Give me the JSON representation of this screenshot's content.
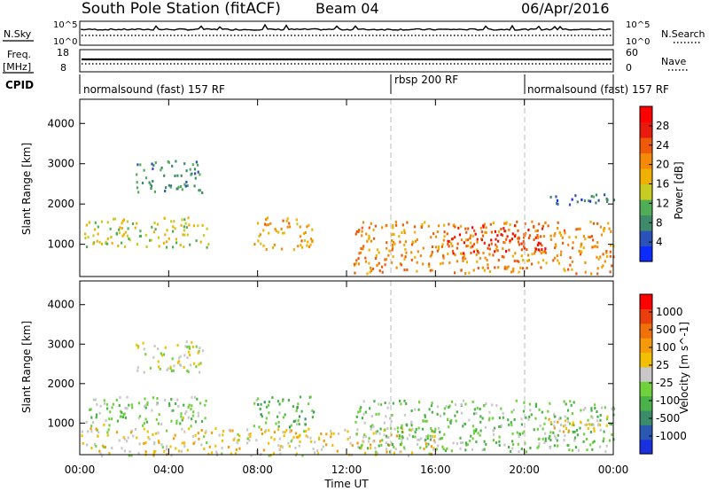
{
  "header": {
    "station": "South Pole Station (fitACF)",
    "beam": "Beam 04",
    "date": "06/Apr/2016"
  },
  "status_panels": {
    "nsky_label": "N.Sky",
    "nsky_ticks": [
      "10^5",
      "10^0"
    ],
    "nsearch_label": "N.Search",
    "nsearch_ticks": [
      "10^5",
      "10^0"
    ],
    "freq_label": "Freq.",
    "freq_unit": "[MHz]",
    "freq_ticks": [
      "18",
      "8"
    ],
    "nave_label": "Nave",
    "nave_ticks": [
      "60",
      "0"
    ],
    "cpid_label": "CPID",
    "cpid_segments": [
      {
        "label": "normalsound (fast) 157 RF",
        "start_h": 0,
        "end_h": 14
      },
      {
        "label": "rbsp 200 RF",
        "start_h": 14,
        "end_h": 20
      },
      {
        "label": "normalsound (fast) 157 RF",
        "start_h": 20,
        "end_h": 24
      }
    ]
  },
  "axes": {
    "ylabel": "Slant Range [km]",
    "xlabel": "Time UT",
    "y_ticks": [
      "1000",
      "2000",
      "3000",
      "4000"
    ],
    "x_ticks": [
      "00:00",
      "04:00",
      "08:00",
      "12:00",
      "16:00",
      "20:00",
      "00:00"
    ]
  },
  "colorbars": {
    "power": {
      "label": "Power [dB]",
      "ticks": [
        "4",
        "8",
        "12",
        "16",
        "20",
        "24",
        "28"
      ],
      "colors": [
        "#0b2bff",
        "#2a52b8",
        "#3e8a6a",
        "#4fae55",
        "#c8cc22",
        "#f0b000",
        "#f58a08",
        "#ef5a08",
        "#e81b0c",
        "#ff0000"
      ]
    },
    "velocity": {
      "label": "Velocity [m s^-1]",
      "ticks": [
        "1000",
        "500",
        "100",
        "25",
        "-25",
        "-100",
        "-500",
        "-1000"
      ],
      "colors": [
        "#1a2fe0",
        "#2b58b2",
        "#3b8c6b",
        "#4bb24a",
        "#6fd23c",
        "#c8c8c8",
        "#f2c000",
        "#f59a08",
        "#f0700a",
        "#ea3f0c",
        "#ff0000"
      ]
    }
  },
  "chart_data": [
    {
      "type": "heatmap",
      "title": "Power",
      "xlabel": "Time UT",
      "ylabel": "Slant Range [km]",
      "xlim_hours": [
        0,
        24
      ],
      "ylim": [
        200,
        4600
      ],
      "colorbar_label": "Power [dB]",
      "colorbar_range": [
        0,
        30
      ],
      "echo_regions": [
        {
          "t0": 0.2,
          "t1": 5.8,
          "r0": 950,
          "r1": 1700,
          "value": 14
        },
        {
          "t0": 2.5,
          "t1": 5.5,
          "r0": 2300,
          "r1": 3100,
          "value": 8
        },
        {
          "t0": 7.8,
          "t1": 10.5,
          "r0": 900,
          "r1": 1700,
          "value": 18
        },
        {
          "t0": 12.3,
          "t1": 24,
          "r0": 300,
          "r1": 1600,
          "value": 20
        },
        {
          "t0": 16.5,
          "t1": 21,
          "r0": 800,
          "r1": 1500,
          "value": 26
        },
        {
          "t0": 21,
          "t1": 24,
          "r0": 2000,
          "r1": 2300,
          "value": 6
        }
      ]
    },
    {
      "type": "heatmap",
      "title": "Velocity",
      "xlabel": "Time UT",
      "ylabel": "Slant Range [km]",
      "xlim_hours": [
        0,
        24
      ],
      "ylim": [
        200,
        4600
      ],
      "colorbar_label": "Velocity [m s^-1]",
      "colorbar_range": [
        -1000,
        1000
      ],
      "echo_regions": [
        {
          "t0": 0.2,
          "t1": 5.8,
          "r0": 950,
          "r1": 1700,
          "value": -150
        },
        {
          "t0": 2.5,
          "t1": 5.5,
          "r0": 2300,
          "r1": 3100,
          "value": 0
        },
        {
          "t0": 7.8,
          "t1": 10.5,
          "r0": 900,
          "r1": 1700,
          "value": -300
        },
        {
          "t0": 0,
          "t1": 16,
          "r0": 200,
          "r1": 900,
          "value": 120
        },
        {
          "t0": 12.3,
          "t1": 24,
          "r0": 300,
          "r1": 1600,
          "value": -200
        },
        {
          "t0": 21,
          "t1": 24,
          "r0": 800,
          "r1": 1200,
          "value": 150
        }
      ]
    }
  ]
}
